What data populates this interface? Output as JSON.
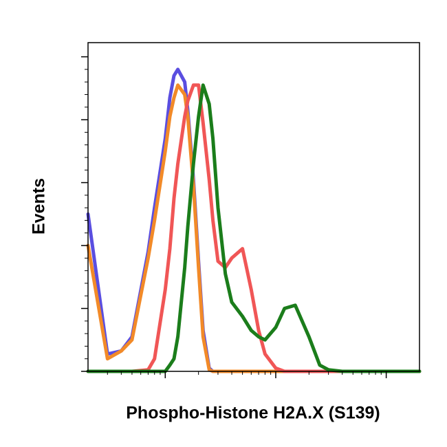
{
  "chart_data": {
    "type": "line",
    "xlabel": "Phospho-Histone H2A.X (S139)",
    "ylabel": "Events",
    "xscale": "log",
    "xlim": [
      2,
      2000
    ],
    "xticks": [
      10,
      100,
      1000
    ],
    "xminorticks": [
      3,
      4,
      5,
      6,
      7,
      8,
      9,
      20,
      30,
      40,
      50,
      60,
      70,
      80,
      90,
      200,
      300,
      400,
      500,
      600,
      700,
      800,
      900
    ],
    "ylim": [
      0,
      104.5
    ],
    "yticks": [
      0,
      20,
      40,
      60,
      80,
      100
    ],
    "yminorticks": [
      4,
      8,
      12,
      16,
      24,
      28,
      32,
      36,
      44,
      48,
      52,
      56,
      64,
      68,
      72,
      76,
      84,
      88,
      92,
      96
    ],
    "x": [
      2,
      3,
      4,
      5,
      7,
      8,
      10,
      11,
      12,
      13,
      15,
      16,
      18,
      20,
      22,
      25,
      27,
      30,
      35,
      40,
      50,
      60,
      70,
      80,
      100,
      120,
      150,
      200,
      250,
      300,
      400,
      500,
      1000,
      2000
    ],
    "series": [
      {
        "color": "#5a4ee0",
        "values": [
          50,
          5.5,
          6.5,
          11,
          38,
          52,
          74,
          87,
          94,
          96,
          92,
          83,
          61,
          35,
          13,
          1,
          0,
          0,
          0,
          0,
          0,
          0,
          0,
          0,
          0,
          0,
          0,
          0,
          0,
          0,
          0,
          0,
          0,
          0
        ]
      },
      {
        "color": "#f28a28",
        "values": [
          40,
          4,
          6.5,
          10,
          36,
          48,
          70,
          81,
          87,
          91,
          88,
          81,
          59,
          33,
          11,
          0.5,
          0,
          0,
          0,
          0,
          0,
          0,
          0,
          0,
          0,
          0,
          0,
          0,
          0,
          0,
          0,
          0,
          0,
          0
        ]
      },
      {
        "color": "#f05656",
        "values": [
          0,
          0,
          0,
          0,
          0.5,
          4,
          26,
          39,
          55,
          66,
          81,
          86,
          91,
          91,
          79,
          61,
          48,
          35,
          33,
          36,
          39,
          26,
          13,
          5.5,
          1,
          0,
          0,
          0,
          0,
          0,
          0,
          0,
          0,
          0
        ]
      },
      {
        "color": "#1b7d1b",
        "values": [
          0,
          0,
          0,
          0,
          0,
          0,
          0,
          2,
          4,
          11,
          33,
          46,
          66,
          81,
          91,
          85,
          74,
          52,
          31,
          22,
          17.5,
          13,
          11,
          10,
          14,
          20,
          21,
          11,
          2,
          0.5,
          0,
          0,
          0,
          0
        ]
      }
    ]
  }
}
